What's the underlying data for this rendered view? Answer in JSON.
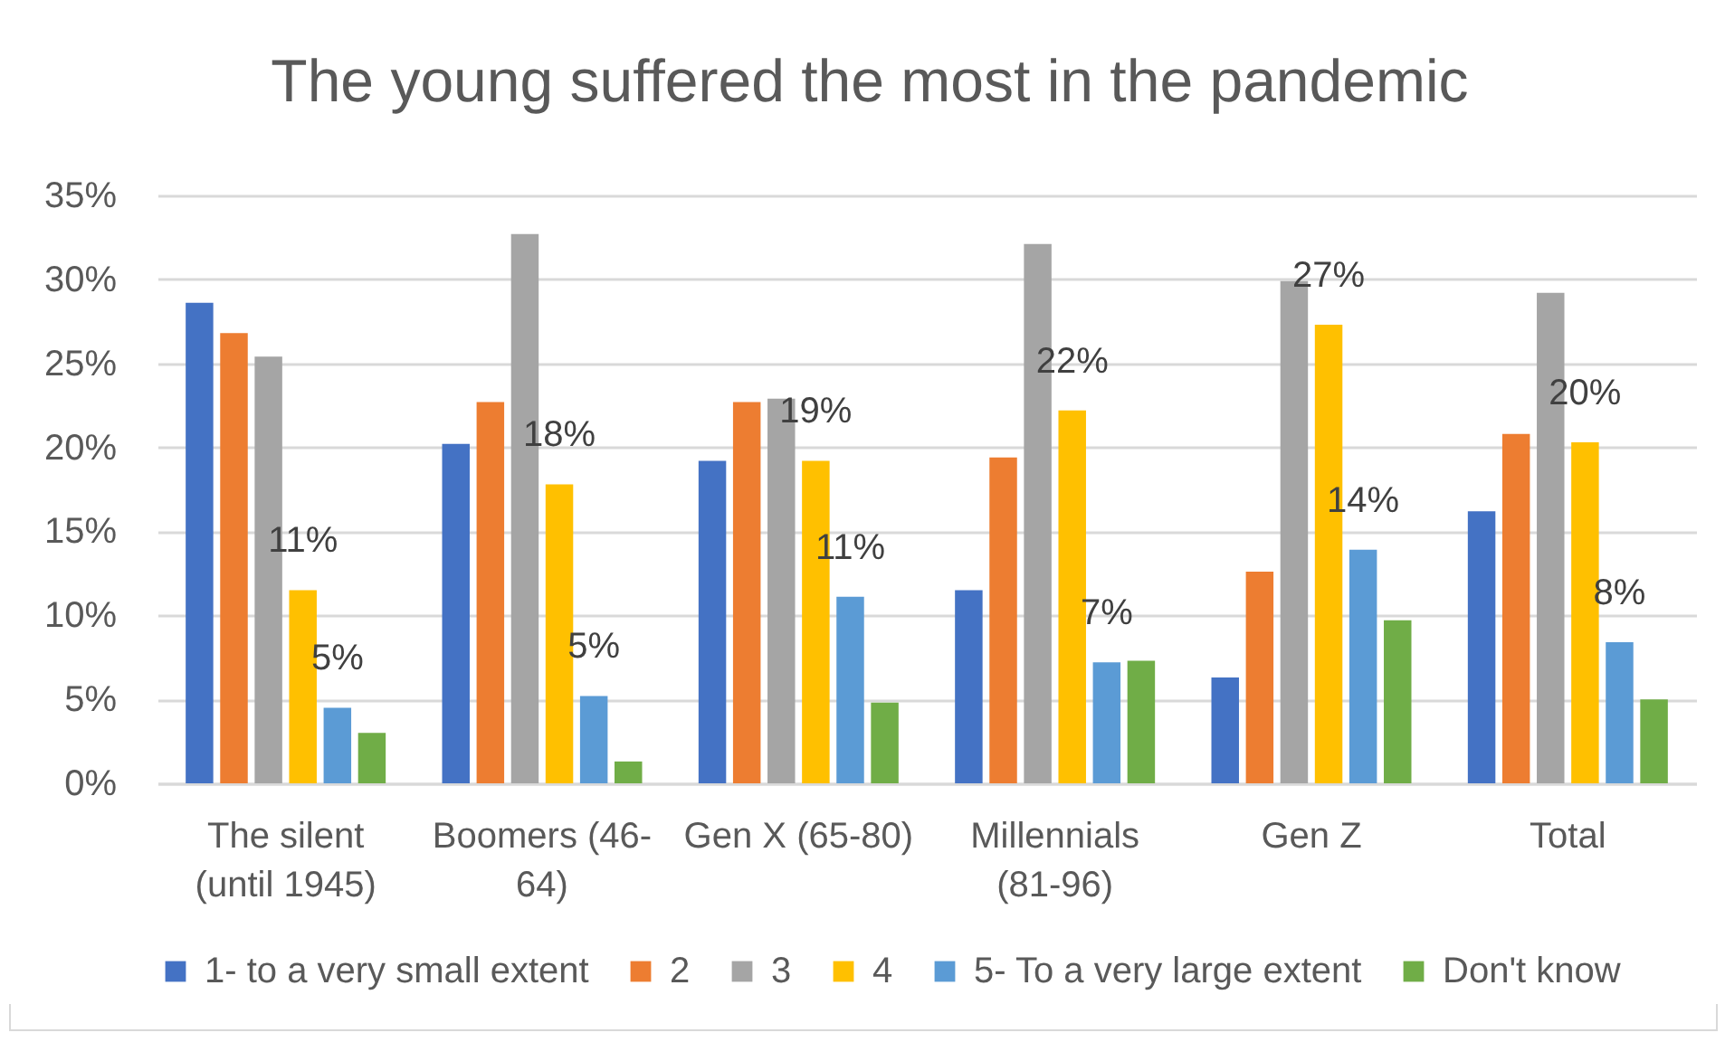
{
  "chart_data": {
    "type": "bar",
    "title": "The young suffered the most in the pandemic",
    "categories": [
      "The silent (until 1945)",
      "Boomers (46-64)",
      "Gen X (65-80)",
      "Millennials (81-96)",
      "Gen Z",
      "Total"
    ],
    "series": [
      {
        "name": "1- to a very small extent",
        "color": "#4472c4",
        "values": [
          28.6,
          20.2,
          19.2,
          11.5,
          6.3,
          16.2
        ]
      },
      {
        "name": "2",
        "color": "#ed7d31",
        "values": [
          26.8,
          22.7,
          22.7,
          19.4,
          12.6,
          20.8
        ]
      },
      {
        "name": "3",
        "color": "#a5a5a5",
        "values": [
          25.4,
          32.7,
          22.9,
          32.1,
          29.9,
          29.2
        ]
      },
      {
        "name": "4",
        "color": "#ffc000",
        "values": [
          11.5,
          17.8,
          19.2,
          22.2,
          27.3,
          20.3
        ],
        "value_labels": [
          "11%",
          "18%",
          "19%",
          "22%",
          "27%",
          "20%"
        ]
      },
      {
        "name": "5- To a very large extent",
        "color": "#5b9bd5",
        "values": [
          4.5,
          5.2,
          11.1,
          7.2,
          13.9,
          8.4
        ],
        "value_labels": [
          "5%",
          "5%",
          "11%",
          "7%",
          "14%",
          "8%"
        ]
      },
      {
        "name": "Don't know",
        "color": "#70ad47",
        "values": [
          3.0,
          1.3,
          4.8,
          7.3,
          9.7,
          5.0
        ]
      }
    ],
    "ylim": [
      0,
      35
    ],
    "yticks": [
      {
        "value": 0,
        "label": "0%"
      },
      {
        "value": 5,
        "label": "5%"
      },
      {
        "value": 10,
        "label": "10%"
      },
      {
        "value": 15,
        "label": "15%"
      },
      {
        "value": 20,
        "label": "20%"
      },
      {
        "value": 25,
        "label": "25%"
      },
      {
        "value": 30,
        "label": "30%"
      },
      {
        "value": 35,
        "label": "35%"
      }
    ],
    "grid": "y",
    "legend": "bottom"
  }
}
